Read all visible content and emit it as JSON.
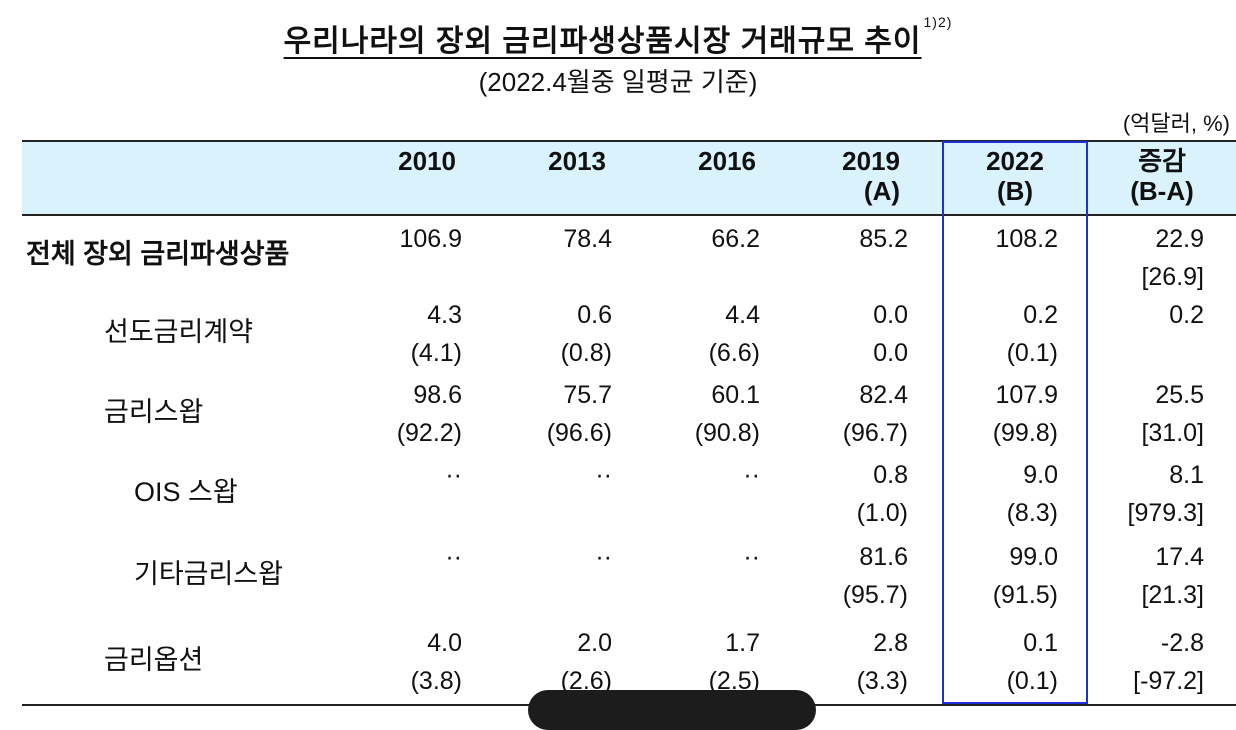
{
  "title": {
    "text": "우리나라의 장외 금리파생상품시장 거래규모 추이",
    "sup": "1)2)"
  },
  "subtitle": "(2022.4월중 일평균 기준)",
  "unit": "(억달러, %)",
  "headers": [
    {
      "line1": "2010",
      "line2": ""
    },
    {
      "line1": "2013",
      "line2": ""
    },
    {
      "line1": "2016",
      "line2": ""
    },
    {
      "line1": "2019",
      "line2": "(A)"
    },
    {
      "line1": "2022",
      "line2": "(B)"
    },
    {
      "line1": "증감",
      "line2": "(B-A)"
    }
  ],
  "rows": [
    {
      "label": "전체 장외 금리파생상품",
      "v": [
        [
          "106.9",
          ""
        ],
        [
          "78.4",
          ""
        ],
        [
          "66.2",
          ""
        ],
        [
          "85.2",
          ""
        ],
        [
          "108.2",
          ""
        ],
        [
          "22.9",
          "[26.9]"
        ]
      ]
    },
    {
      "label": "선도금리계약",
      "v": [
        [
          "4.3",
          "(4.1)"
        ],
        [
          "0.6",
          "(0.8)"
        ],
        [
          "4.4",
          "(6.6)"
        ],
        [
          "0.0",
          "0.0"
        ],
        [
          "0.2",
          "(0.1)"
        ],
        [
          "0.2",
          ""
        ]
      ]
    },
    {
      "label": "금리스왑",
      "v": [
        [
          "98.6",
          "(92.2)"
        ],
        [
          "75.7",
          "(96.6)"
        ],
        [
          "60.1",
          "(90.8)"
        ],
        [
          "82.4",
          "(96.7)"
        ],
        [
          "107.9",
          "(99.8)"
        ],
        [
          "25.5",
          "[31.0]"
        ]
      ]
    },
    {
      "label": "OIS 스왑",
      "v": [
        [
          "··",
          ""
        ],
        [
          "··",
          ""
        ],
        [
          "··",
          ""
        ],
        [
          "0.8",
          "(1.0)"
        ],
        [
          "9.0",
          "(8.3)"
        ],
        [
          "8.1",
          "[979.3]"
        ]
      ]
    },
    {
      "label": "기타금리스왑",
      "v": [
        [
          "··",
          ""
        ],
        [
          "··",
          ""
        ],
        [
          "··",
          ""
        ],
        [
          "81.6",
          "(95.7)"
        ],
        [
          "99.0",
          "(91.5)"
        ],
        [
          "17.4",
          "[21.3]"
        ]
      ]
    },
    {
      "label": "금리옵션",
      "v": [
        [
          "4.0",
          "(3.8)"
        ],
        [
          "2.0",
          "(2.6)"
        ],
        [
          "1.7",
          "(2.5)"
        ],
        [
          "2.8",
          "(3.3)"
        ],
        [
          "0.1",
          "(0.1)"
        ],
        [
          "-2.8",
          "[-97.2]"
        ]
      ]
    }
  ]
}
